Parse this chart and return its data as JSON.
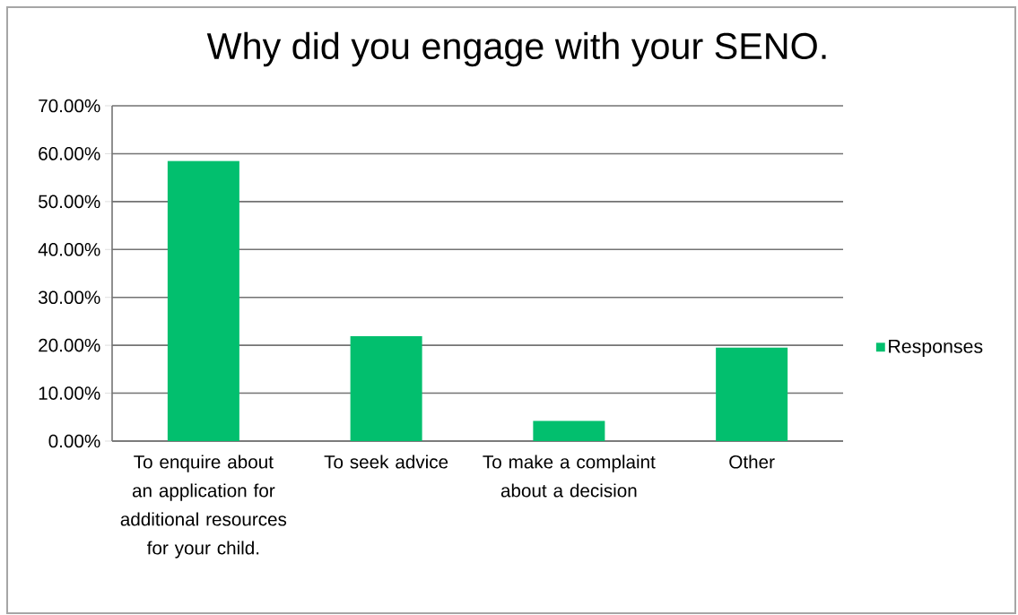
{
  "chart_data": {
    "type": "bar",
    "title": "Why did you engage with your SENO.",
    "categories": [
      "To enquire about an application for additional resources for your child.",
      "To seek advice",
      "To make a complaint about a decision",
      "Other"
    ],
    "series": [
      {
        "name": "Responses",
        "color": "#02bf6e",
        "values": [
          58.5,
          21.9,
          4.2,
          19.5
        ]
      }
    ],
    "ylim": [
      0,
      70
    ],
    "yticks": [
      {
        "value": 0,
        "label": "0.00%"
      },
      {
        "value": 10,
        "label": "10.00%"
      },
      {
        "value": 20,
        "label": "20.00%"
      },
      {
        "value": 30,
        "label": "30.00%"
      },
      {
        "value": 40,
        "label": "40.00%"
      },
      {
        "value": 50,
        "label": "50.00%"
      },
      {
        "value": 60,
        "label": "60.00%"
      },
      {
        "value": 70,
        "label": "70.00%"
      }
    ],
    "grid": "y",
    "legend": "right"
  }
}
